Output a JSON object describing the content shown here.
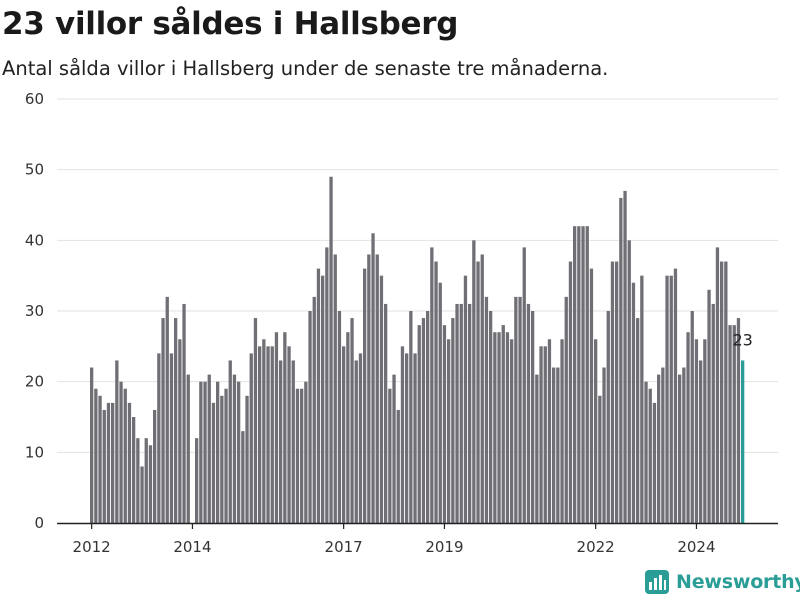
{
  "header": {
    "title": "23 villor såldes i Hallsberg",
    "subtitle": "Antal sålda villor i Hallsberg under de senaste tre månaderna."
  },
  "brand": {
    "name": "Newsworthy"
  },
  "colors": {
    "bar": "#6f6f75",
    "highlight": "#2a9d96",
    "grid": "#e2e2e2",
    "axis": "#222222"
  },
  "chart_data": {
    "type": "bar",
    "title": "23 villor såldes i Hallsberg",
    "subtitle": "Antal sålda villor i Hallsberg under de senaste tre månaderna.",
    "x_start": "2012-01",
    "x_interval": "month",
    "values": [
      22,
      19,
      18,
      16,
      17,
      17,
      23,
      20,
      19,
      17,
      15,
      12,
      8,
      12,
      11,
      16,
      24,
      29,
      32,
      24,
      29,
      26,
      31,
      21,
      0,
      12,
      20,
      20,
      21,
      17,
      20,
      18,
      19,
      23,
      21,
      20,
      13,
      18,
      24,
      29,
      25,
      26,
      25,
      25,
      27,
      23,
      27,
      25,
      23,
      19,
      19,
      20,
      30,
      32,
      36,
      35,
      39,
      49,
      38,
      30,
      25,
      27,
      29,
      23,
      24,
      36,
      38,
      41,
      38,
      35,
      31,
      19,
      21,
      16,
      25,
      24,
      30,
      24,
      28,
      29,
      30,
      39,
      37,
      34,
      28,
      26,
      29,
      31,
      31,
      35,
      31,
      40,
      37,
      38,
      32,
      30,
      27,
      27,
      28,
      27,
      26,
      32,
      32,
      39,
      31,
      30,
      21,
      25,
      25,
      26,
      22,
      22,
      26,
      32,
      37,
      42,
      42,
      42,
      42,
      36,
      26,
      18,
      22,
      30,
      37,
      37,
      46,
      47,
      40,
      34,
      29,
      35,
      20,
      19,
      17,
      21,
      22,
      35,
      35,
      36,
      21,
      22,
      27,
      30,
      26,
      23,
      26,
      33,
      31,
      39,
      37,
      37,
      28,
      28,
      29,
      23
    ],
    "highlight_last": true,
    "annotation": "23",
    "y_ticks": [
      0,
      10,
      20,
      30,
      40,
      50,
      60
    ],
    "ylim": [
      0,
      60
    ],
    "x_tick_labels": [
      "2012",
      "2014",
      "2017",
      "2019",
      "2022",
      "2024"
    ],
    "x_tick_dates": [
      "2012-01",
      "2014-01",
      "2017-01",
      "2019-01",
      "2022-01",
      "2024-01"
    ],
    "xlabel": "",
    "ylabel": "",
    "grid": true,
    "legend": "none"
  }
}
